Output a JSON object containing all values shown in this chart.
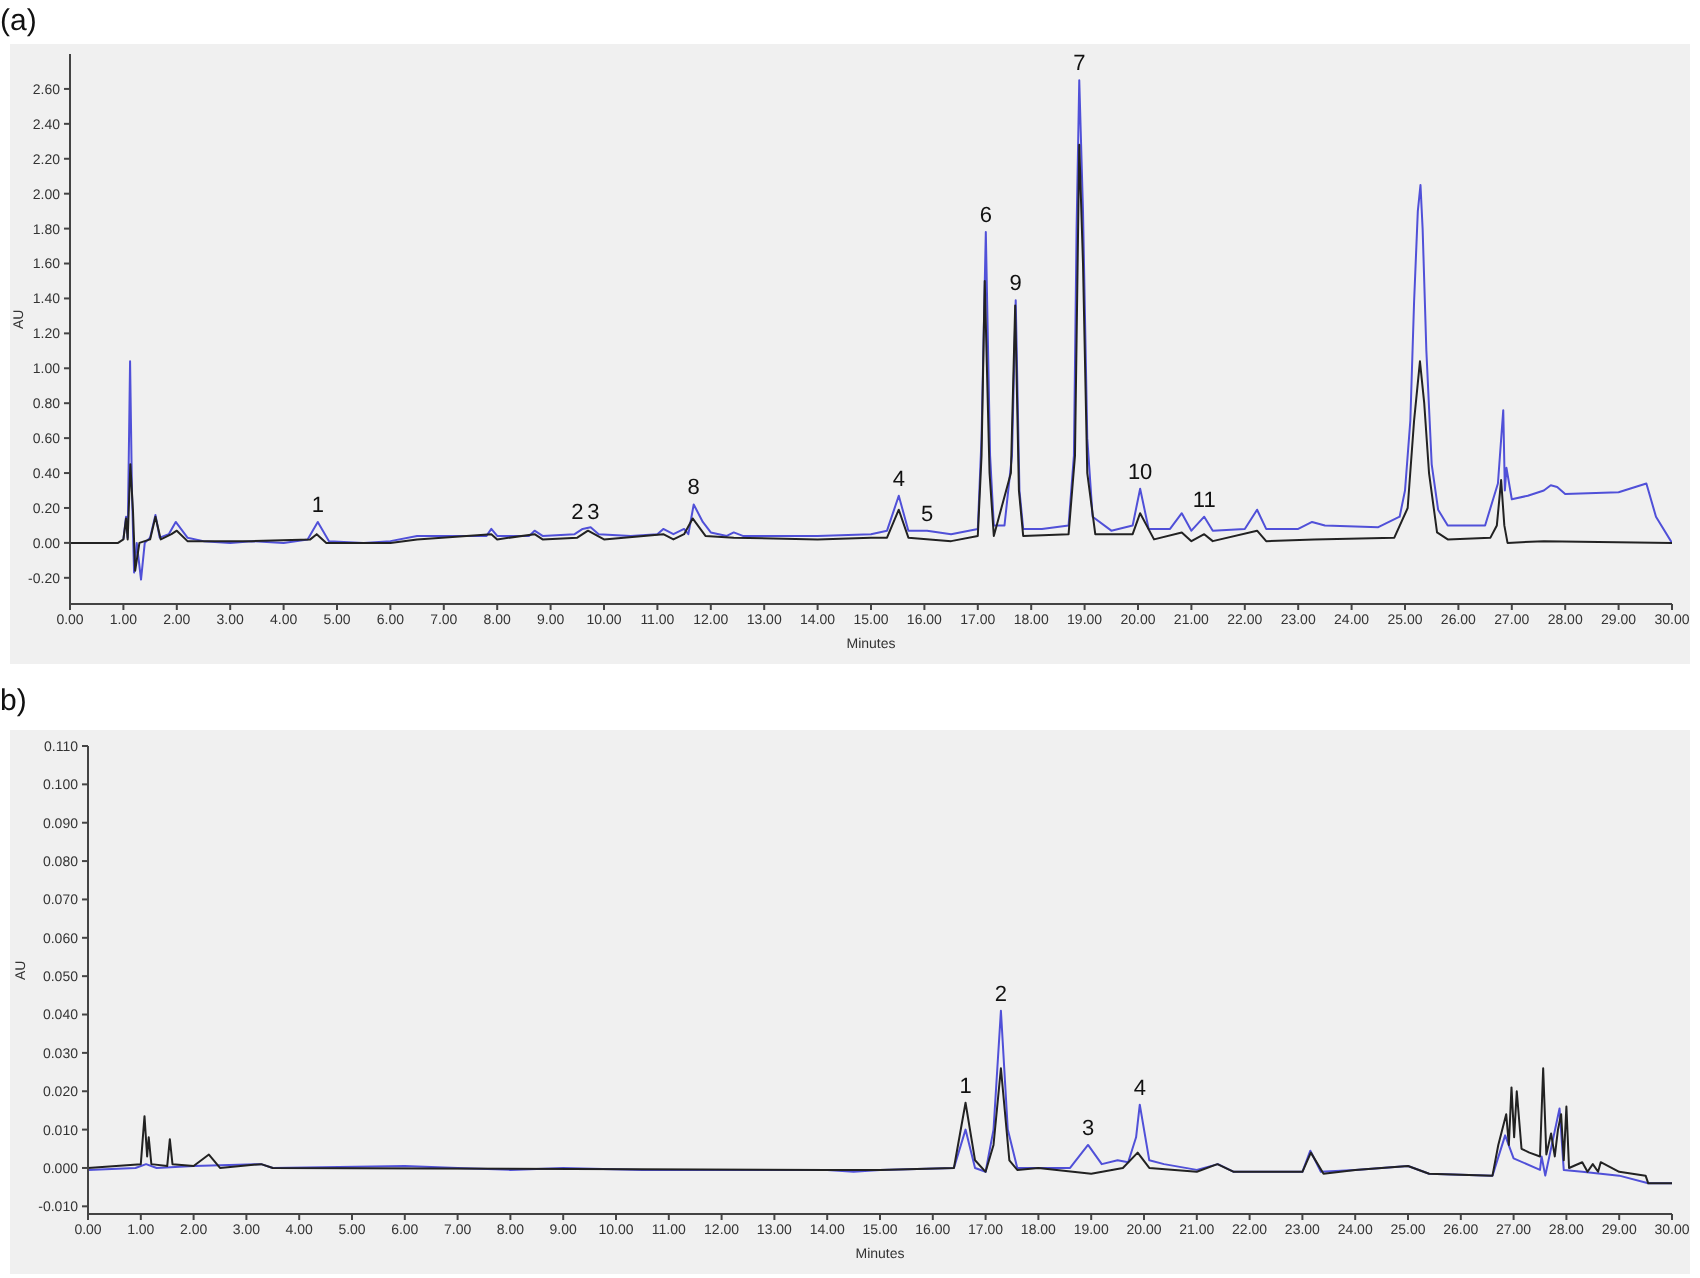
{
  "chart_data": [
    {
      "type": "line",
      "title": "(a)",
      "xlabel": "Minutes",
      "ylabel": "AU",
      "xlim": [
        0,
        30
      ],
      "xticks": [
        {
          "value": 0,
          "label": "0.00"
        },
        {
          "value": 1,
          "label": "1.00"
        },
        {
          "value": 2,
          "label": "2.00"
        },
        {
          "value": 3,
          "label": "3.00"
        },
        {
          "value": 4,
          "label": "4.00"
        },
        {
          "value": 5,
          "label": "5.00"
        },
        {
          "value": 6,
          "label": "6.00"
        },
        {
          "value": 7,
          "label": "7.00"
        },
        {
          "value": 8,
          "label": "8.00"
        },
        {
          "value": 9,
          "label": "9.00"
        },
        {
          "value": 10,
          "label": "10.00"
        },
        {
          "value": 11,
          "label": "11.00"
        },
        {
          "value": 12,
          "label": "12.00"
        },
        {
          "value": 13,
          "label": "13.00"
        },
        {
          "value": 14,
          "label": "14.00"
        },
        {
          "value": 15,
          "label": "15.00"
        },
        {
          "value": 16,
          "label": "16.00"
        },
        {
          "value": 17,
          "label": "17.00"
        },
        {
          "value": 18,
          "label": "18.00"
        },
        {
          "value": 19,
          "label": "19.00"
        },
        {
          "value": 20,
          "label": "20.00"
        },
        {
          "value": 21,
          "label": "21.00"
        },
        {
          "value": 22,
          "label": "22.00"
        },
        {
          "value": 23,
          "label": "23.00"
        },
        {
          "value": 24,
          "label": "24.00"
        },
        {
          "value": 25,
          "label": "25.00"
        },
        {
          "value": 26,
          "label": "26.00"
        },
        {
          "value": 27,
          "label": "27.00"
        },
        {
          "value": 28,
          "label": "28.00"
        },
        {
          "value": 29,
          "label": "29.00"
        },
        {
          "value": 30,
          "label": "30.00"
        }
      ],
      "ylim": [
        -0.35,
        2.8
      ],
      "yticks": [
        {
          "value": -0.2,
          "label": "-0.20"
        },
        {
          "value": 0,
          "label": "0.00"
        },
        {
          "value": 0.2,
          "label": "0.20"
        },
        {
          "value": 0.4,
          "label": "0.40"
        },
        {
          "value": 0.6,
          "label": "0.60"
        },
        {
          "value": 0.8,
          "label": "0.80"
        },
        {
          "value": 1,
          "label": "1.00"
        },
        {
          "value": 1.2,
          "label": "1.20"
        },
        {
          "value": 1.4,
          "label": "1.40"
        },
        {
          "value": 1.6,
          "label": "1.60"
        },
        {
          "value": 1.8,
          "label": "1.80"
        },
        {
          "value": 2,
          "label": "2.00"
        },
        {
          "value": 2.2,
          "label": "2.20"
        },
        {
          "value": 2.4,
          "label": "2.40"
        },
        {
          "value": 2.6,
          "label": "2.60"
        }
      ],
      "series": [
        {
          "color": "#5050d8",
          "x": [
            1.0,
            1.05,
            1.08,
            1.125,
            1.16,
            1.2,
            1.25,
            1.33,
            1.4,
            1.5,
            1.6,
            1.68,
            1.85,
            1.98,
            2.2,
            2.5,
            3.0,
            3.4,
            4.0,
            4.45,
            4.64,
            4.85,
            5.5,
            6.0,
            6.5,
            7.8,
            7.89,
            8.0,
            8.6,
            8.7,
            8.85,
            9.45,
            9.6,
            9.75,
            9.9,
            10.5,
            11.0,
            11.11,
            11.3,
            11.5,
            11.58,
            11.68,
            11.85,
            12.0,
            12.3,
            12.43,
            12.6,
            14.0,
            15.0,
            15.3,
            15.52,
            15.7,
            16.05,
            16.5,
            17.0,
            17.07,
            17.15,
            17.23,
            17.3,
            17.5,
            17.64,
            17.71,
            17.78,
            17.85,
            18.2,
            18.7,
            18.8,
            18.85,
            18.9,
            18.97,
            19.05,
            19.15,
            19.5,
            19.9,
            20.04,
            20.2,
            20.6,
            20.82,
            21.0,
            21.24,
            21.4,
            22.0,
            22.23,
            22.4,
            23.0,
            23.26,
            23.5,
            24.5,
            24.9,
            25.0,
            25.1,
            25.17,
            25.24,
            25.29,
            25.33,
            25.4,
            25.5,
            25.62,
            25.8,
            26.5,
            26.74,
            26.84,
            26.87,
            26.9,
            27.0,
            27.3,
            27.6,
            27.73,
            27.85,
            28.0,
            29.0,
            29.52,
            29.7,
            30
          ],
          "values": [
            0.02,
            0.15,
            0.03,
            1.04,
            0.3,
            -0.17,
            0,
            -0.21,
            0,
            0.03,
            0.16,
            0.03,
            0.05,
            0.12,
            0.03,
            0.01,
            0,
            0.01,
            0,
            0.02,
            0.12,
            0.01,
            0,
            0.01,
            0.04,
            0.04,
            0.08,
            0.04,
            0.04,
            0.07,
            0.04,
            0.05,
            0.08,
            0.09,
            0.05,
            0.04,
            0.05,
            0.08,
            0.05,
            0.08,
            0.05,
            0.22,
            0.12,
            0.06,
            0.04,
            0.06,
            0.04,
            0.04,
            0.05,
            0.07,
            0.27,
            0.07,
            0.07,
            0.05,
            0.08,
            0.6,
            1.78,
            0.5,
            0.1,
            0.1,
            0.5,
            1.39,
            0.3,
            0.08,
            0.08,
            0.1,
            0.5,
            1.8,
            2.65,
            1.9,
            0.6,
            0.15,
            0.07,
            0.1,
            0.31,
            0.08,
            0.08,
            0.17,
            0.07,
            0.15,
            0.07,
            0.08,
            0.19,
            0.08,
            0.08,
            0.12,
            0.1,
            0.09,
            0.15,
            0.3,
            0.7,
            1.38,
            1.9,
            2.05,
            1.8,
            1.1,
            0.45,
            0.19,
            0.1,
            0.1,
            0.34,
            0.76,
            0.3,
            0.43,
            0.25,
            0.27,
            0.3,
            0.33,
            0.32,
            0.28,
            0.29,
            0.34,
            0.15,
            0
          ]
        },
        {
          "color": "#222222",
          "x": [
            0,
            0.9,
            1.0,
            1.05,
            1.08,
            1.13,
            1.18,
            1.22,
            1.3,
            1.5,
            1.6,
            1.7,
            1.9,
            2.0,
            2.2,
            3.4,
            4.5,
            4.62,
            4.8,
            6.0,
            6.5,
            7.89,
            8.0,
            8.7,
            8.85,
            9.5,
            9.7,
            10.0,
            11.11,
            11.3,
            11.5,
            11.66,
            11.9,
            12.43,
            14.0,
            15.0,
            15.3,
            15.52,
            15.7,
            16.5,
            17.0,
            17.07,
            17.13,
            17.22,
            17.3,
            17.62,
            17.7,
            17.77,
            17.85,
            18.7,
            18.82,
            18.9,
            18.97,
            19.05,
            19.2,
            19.9,
            20.04,
            20.3,
            20.82,
            21.0,
            21.24,
            21.4,
            22.23,
            22.4,
            23.3,
            24.8,
            25.05,
            25.17,
            25.28,
            25.36,
            25.45,
            25.6,
            25.8,
            26.6,
            26.72,
            26.8,
            26.86,
            26.92,
            27.6,
            30
          ],
          "values": [
            0,
            0,
            0.02,
            0.14,
            0.02,
            0.45,
            0.18,
            -0.16,
            0,
            0.02,
            0.15,
            0.02,
            0.05,
            0.07,
            0.01,
            0.01,
            0.02,
            0.05,
            0,
            0,
            0.02,
            0.05,
            0.02,
            0.05,
            0.02,
            0.03,
            0.07,
            0.02,
            0.05,
            0.02,
            0.05,
            0.14,
            0.04,
            0.03,
            0.02,
            0.03,
            0.03,
            0.19,
            0.03,
            0.01,
            0.04,
            0.5,
            1.5,
            0.4,
            0.04,
            0.4,
            1.36,
            0.3,
            0.04,
            0.05,
            0.5,
            2.28,
            1.6,
            0.4,
            0.05,
            0.05,
            0.17,
            0.02,
            0.06,
            0.01,
            0.05,
            0.01,
            0.07,
            0.01,
            0.02,
            0.03,
            0.2,
            0.7,
            1.04,
            0.8,
            0.4,
            0.06,
            0.02,
            0.03,
            0.1,
            0.36,
            0.1,
            0,
            0.01,
            0
          ]
        }
      ],
      "annotations": [
        {
          "text": "1",
          "x": 4.64,
          "y": 0.12
        },
        {
          "text": "2",
          "x": 9.5,
          "y": 0.08
        },
        {
          "text": "3",
          "x": 9.8,
          "y": 0.08
        },
        {
          "text": "8",
          "x": 11.68,
          "y": 0.22
        },
        {
          "text": "4",
          "x": 15.52,
          "y": 0.27
        },
        {
          "text": "5",
          "x": 16.05,
          "y": 0.07
        },
        {
          "text": "6",
          "x": 17.15,
          "y": 1.78
        },
        {
          "text": "9",
          "x": 17.71,
          "y": 1.39
        },
        {
          "text": "7",
          "x": 18.9,
          "y": 2.65
        },
        {
          "text": "10",
          "x": 20.04,
          "y": 0.31
        },
        {
          "text": "11",
          "x": 21.24,
          "y": 0.15
        }
      ]
    },
    {
      "type": "line",
      "title": "b)",
      "xlabel": "Minutes",
      "ylabel": "AU",
      "xlim": [
        0,
        30
      ],
      "xticks": [
        {
          "value": 0,
          "label": "0.00"
        },
        {
          "value": 1,
          "label": "1.00"
        },
        {
          "value": 2,
          "label": "2.00"
        },
        {
          "value": 3,
          "label": "3.00"
        },
        {
          "value": 4,
          "label": "4.00"
        },
        {
          "value": 5,
          "label": "5.00"
        },
        {
          "value": 6,
          "label": "6.00"
        },
        {
          "value": 7,
          "label": "7.00"
        },
        {
          "value": 8,
          "label": "8.00"
        },
        {
          "value": 9,
          "label": "9.00"
        },
        {
          "value": 10,
          "label": "10.00"
        },
        {
          "value": 11,
          "label": "11.00"
        },
        {
          "value": 12,
          "label": "12.00"
        },
        {
          "value": 13,
          "label": "13.00"
        },
        {
          "value": 14,
          "label": "14.00"
        },
        {
          "value": 15,
          "label": "15.00"
        },
        {
          "value": 16,
          "label": "16.00"
        },
        {
          "value": 17,
          "label": "17.00"
        },
        {
          "value": 18,
          "label": "18.00"
        },
        {
          "value": 19,
          "label": "19.00"
        },
        {
          "value": 20,
          "label": "20.00"
        },
        {
          "value": 21,
          "label": "21.00"
        },
        {
          "value": 22,
          "label": "22.00"
        },
        {
          "value": 23,
          "label": "23.00"
        },
        {
          "value": 24,
          "label": "24.00"
        },
        {
          "value": 25,
          "label": "25.00"
        },
        {
          "value": 26,
          "label": "26.00"
        },
        {
          "value": 27,
          "label": "27.00"
        },
        {
          "value": 28,
          "label": "28.00"
        },
        {
          "value": 29,
          "label": "29.00"
        },
        {
          "value": 30,
          "label": "30.00"
        }
      ],
      "ylim": [
        -0.012,
        0.11
      ],
      "yticks": [
        {
          "value": -0.01,
          "label": "-0.010"
        },
        {
          "value": 0,
          "label": "0.000"
        },
        {
          "value": 0.01,
          "label": "0.010"
        },
        {
          "value": 0.02,
          "label": "0.020"
        },
        {
          "value": 0.03,
          "label": "0.030"
        },
        {
          "value": 0.04,
          "label": "0.040"
        },
        {
          "value": 0.05,
          "label": "0.050"
        },
        {
          "value": 0.06,
          "label": "0.060"
        },
        {
          "value": 0.07,
          "label": "0.070"
        },
        {
          "value": 0.08,
          "label": "0.080"
        },
        {
          "value": 0.09,
          "label": "0.090"
        },
        {
          "value": 0.1,
          "label": "0.100"
        },
        {
          "value": 0.11,
          "label": "0.110"
        }
      ],
      "series": [
        {
          "color": "#5050d8",
          "x": [
            0,
            0.9,
            1.1,
            1.3,
            2.0,
            3.28,
            3.5,
            6.0,
            7.0,
            8.0,
            9.0,
            10.5,
            11.0,
            14.0,
            14.5,
            15.0,
            16.4,
            16.62,
            16.8,
            17.0,
            17.15,
            17.29,
            17.42,
            17.6,
            18.0,
            18.6,
            18.94,
            19.2,
            19.5,
            19.7,
            19.85,
            19.92,
            20.1,
            20.38,
            21.0,
            21.4,
            21.7,
            23.0,
            23.15,
            23.35,
            24.0,
            25.0,
            25.4,
            26.6,
            26.84,
            27.0,
            27.5,
            27.53,
            27.6,
            27.87,
            27.95,
            28.3,
            29.0,
            29.55,
            30
          ],
          "values": [
            -0.0005,
            0,
            0.001,
            0,
            0.0005,
            0.001,
            0,
            0.0005,
            0,
            -0.0005,
            0,
            -0.0005,
            -0.0005,
            -0.0005,
            -0.001,
            -0.0005,
            0,
            0.01,
            0,
            -0.001,
            0.01,
            0.041,
            0.01,
            0,
            0,
            0,
            0.006,
            0.001,
            0.002,
            0.0015,
            0.008,
            0.0165,
            0.002,
            0.001,
            -0.0005,
            0.001,
            -0.001,
            -0.001,
            0.0045,
            -0.001,
            -0.0005,
            0.0005,
            -0.0015,
            -0.002,
            0.0085,
            0.0025,
            -0.0005,
            0.003,
            -0.002,
            0.0155,
            -0.0005,
            -0.001,
            -0.002,
            -0.004,
            -0.004
          ]
        },
        {
          "color": "#222222",
          "x": [
            0,
            1.0,
            1.07,
            1.12,
            1.15,
            1.2,
            1.5,
            1.55,
            1.6,
            2.0,
            2.29,
            2.5,
            3.28,
            3.5,
            14.0,
            15.0,
            16.4,
            16.62,
            16.8,
            17.0,
            17.15,
            17.29,
            17.45,
            17.6,
            18.0,
            19.0,
            19.6,
            19.88,
            20.1,
            21.0,
            21.39,
            21.7,
            23.0,
            23.16,
            23.4,
            24.0,
            25.0,
            25.4,
            26.6,
            26.71,
            26.86,
            26.91,
            26.96,
            27.01,
            27.06,
            27.15,
            27.3,
            27.5,
            27.56,
            27.62,
            27.71,
            27.78,
            27.84,
            27.9,
            27.95,
            28.0,
            28.05,
            28.3,
            28.4,
            28.5,
            28.6,
            28.65,
            29.0,
            29.5,
            29.55,
            30
          ],
          "values": [
            0,
            0.001,
            0.0135,
            0.003,
            0.008,
            0.001,
            0.0005,
            0.0075,
            0.001,
            0.0005,
            0.0035,
            0,
            0.001,
            0,
            -0.0005,
            -0.0005,
            0,
            0.017,
            0.002,
            -0.001,
            0.006,
            0.026,
            0.002,
            -0.0005,
            0,
            -0.0015,
            0,
            0.004,
            0,
            -0.001,
            0.001,
            -0.001,
            -0.001,
            0.004,
            -0.0015,
            -0.0005,
            0.0005,
            -0.0015,
            -0.002,
            0.006,
            0.014,
            0.006,
            0.021,
            0.008,
            0.02,
            0.005,
            0.004,
            0.003,
            0.026,
            0.0035,
            0.009,
            0.003,
            0.01,
            0.014,
            0.002,
            0.016,
            0,
            0.0015,
            -0.001,
            0.001,
            -0.001,
            0.0015,
            -0.001,
            -0.002,
            -0.004,
            -0.004
          ]
        }
      ],
      "annotations": [
        {
          "text": "1",
          "x": 16.62,
          "y": 0.017
        },
        {
          "text": "2",
          "x": 17.29,
          "y": 0.041
        },
        {
          "text": "3",
          "x": 18.94,
          "y": 0.006
        },
        {
          "text": "4",
          "x": 19.92,
          "y": 0.0165
        }
      ]
    }
  ]
}
